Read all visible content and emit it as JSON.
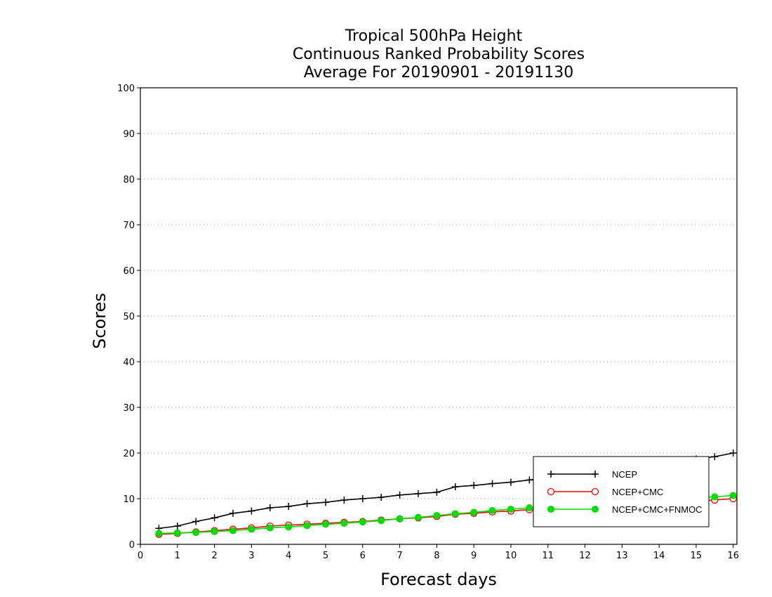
{
  "chart_data": {
    "type": "line",
    "title": [
      "Tropical 500hPa Height",
      "Continuous Ranked Probability Scores",
      "Average For 20190901 - 20191130"
    ],
    "xlabel": "Forecast days",
    "ylabel": "Scores",
    "xlim": [
      0,
      16.1
    ],
    "ylim": [
      0,
      100
    ],
    "xticks": [
      0,
      1,
      2,
      3,
      4,
      5,
      6,
      7,
      8,
      9,
      10,
      11,
      12,
      13,
      14,
      15,
      16
    ],
    "yticks": [
      0,
      10,
      20,
      30,
      40,
      50,
      60,
      70,
      80,
      90,
      100
    ],
    "grid": "horizontal-dotted",
    "legend_position": "bottom-right",
    "x": [
      0.5,
      1.0,
      1.5,
      2.0,
      2.5,
      3.0,
      3.5,
      4.0,
      4.5,
      5.0,
      5.5,
      6.0,
      6.5,
      7.0,
      7.5,
      8.0,
      8.5,
      9.0,
      9.5,
      10.0,
      10.5,
      11.0,
      11.5,
      12.0,
      12.5,
      13.0,
      13.5,
      14.0,
      14.5,
      15.0,
      15.5,
      16.0
    ],
    "series": [
      {
        "name": "NCEP",
        "color": "#000000",
        "marker": "plus",
        "values": [
          3.5,
          4.0,
          5.0,
          5.8,
          6.8,
          7.3,
          8.0,
          8.3,
          8.9,
          9.2,
          9.7,
          10.0,
          10.3,
          10.8,
          11.1,
          11.4,
          12.6,
          12.9,
          13.3,
          13.6,
          14.1,
          14.6,
          15.1,
          15.6,
          16.1,
          16.6,
          17.1,
          17.6,
          18.1,
          18.7,
          19.2,
          20.0
        ]
      },
      {
        "name": "NCEP+CMC",
        "color": "#ff0000",
        "marker": "open-circle",
        "values": [
          2.2,
          2.4,
          2.7,
          3.0,
          3.3,
          3.6,
          4.0,
          4.2,
          4.4,
          4.6,
          4.8,
          5.0,
          5.3,
          5.6,
          5.8,
          6.1,
          6.6,
          6.8,
          7.1,
          7.3,
          7.6,
          7.8,
          8.0,
          8.3,
          8.5,
          8.7,
          8.9,
          9.1,
          9.3,
          9.5,
          9.7,
          10.0
        ]
      },
      {
        "name": "NCEP+CMC+FNMOC",
        "color": "#00dd00",
        "marker": "filled-circle",
        "values": [
          2.4,
          2.5,
          2.6,
          2.8,
          3.0,
          3.3,
          3.6,
          3.8,
          4.1,
          4.4,
          4.6,
          4.9,
          5.2,
          5.6,
          5.9,
          6.3,
          6.7,
          7.0,
          7.4,
          7.7,
          8.0,
          8.3,
          8.6,
          8.8,
          9.1,
          9.3,
          9.5,
          9.7,
          9.9,
          10.2,
          10.4,
          10.7
        ]
      }
    ]
  }
}
